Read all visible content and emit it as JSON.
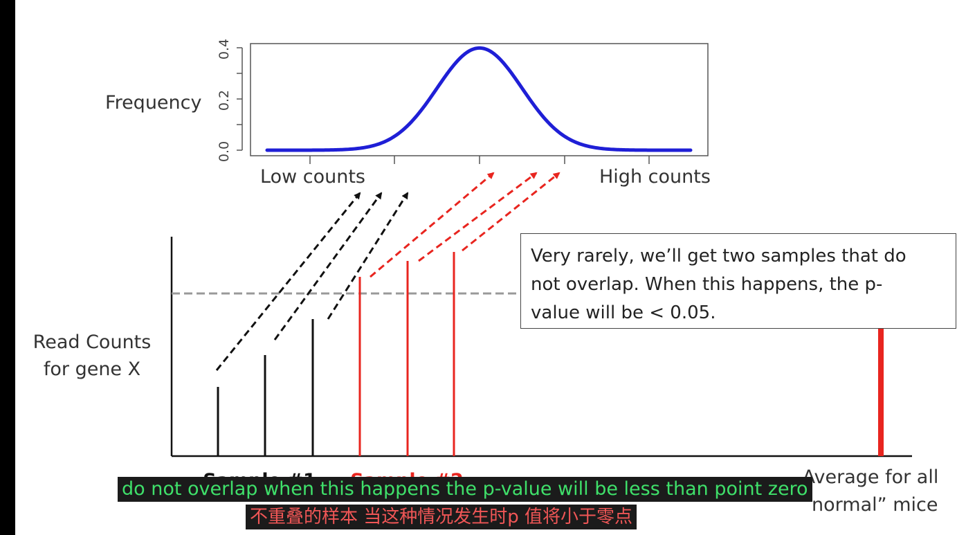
{
  "distribution_plot": {
    "ylabel": "Frequency",
    "yticks": [
      "0.0",
      "0.2",
      "0.4"
    ],
    "x_left_label": "Low counts",
    "x_right_label": "High counts",
    "curve_color": "#1f1fd6"
  },
  "bar_plot": {
    "ylabel_line1": "Read Counts",
    "ylabel_line2": "for gene X",
    "sample1_label": "Sample #1",
    "sample2_label": "Sample #2",
    "average_label_line1": "Average for all",
    "average_label_line2": "“normal” mice",
    "sample1_color": "#111111",
    "sample2_color": "#e8251f",
    "average_color": "#e8251f"
  },
  "callout": {
    "line1": "Very rarely, we’ll get two samples that do",
    "line2": "not overlap. When this happens, the p-",
    "line3": "value will be < 0.05."
  },
  "subtitles": {
    "english": "do not overlap when this happens the p-value will be less than point zero",
    "chinese": "不重叠的样本 当这种情况发生时p 值将小于零点"
  }
}
